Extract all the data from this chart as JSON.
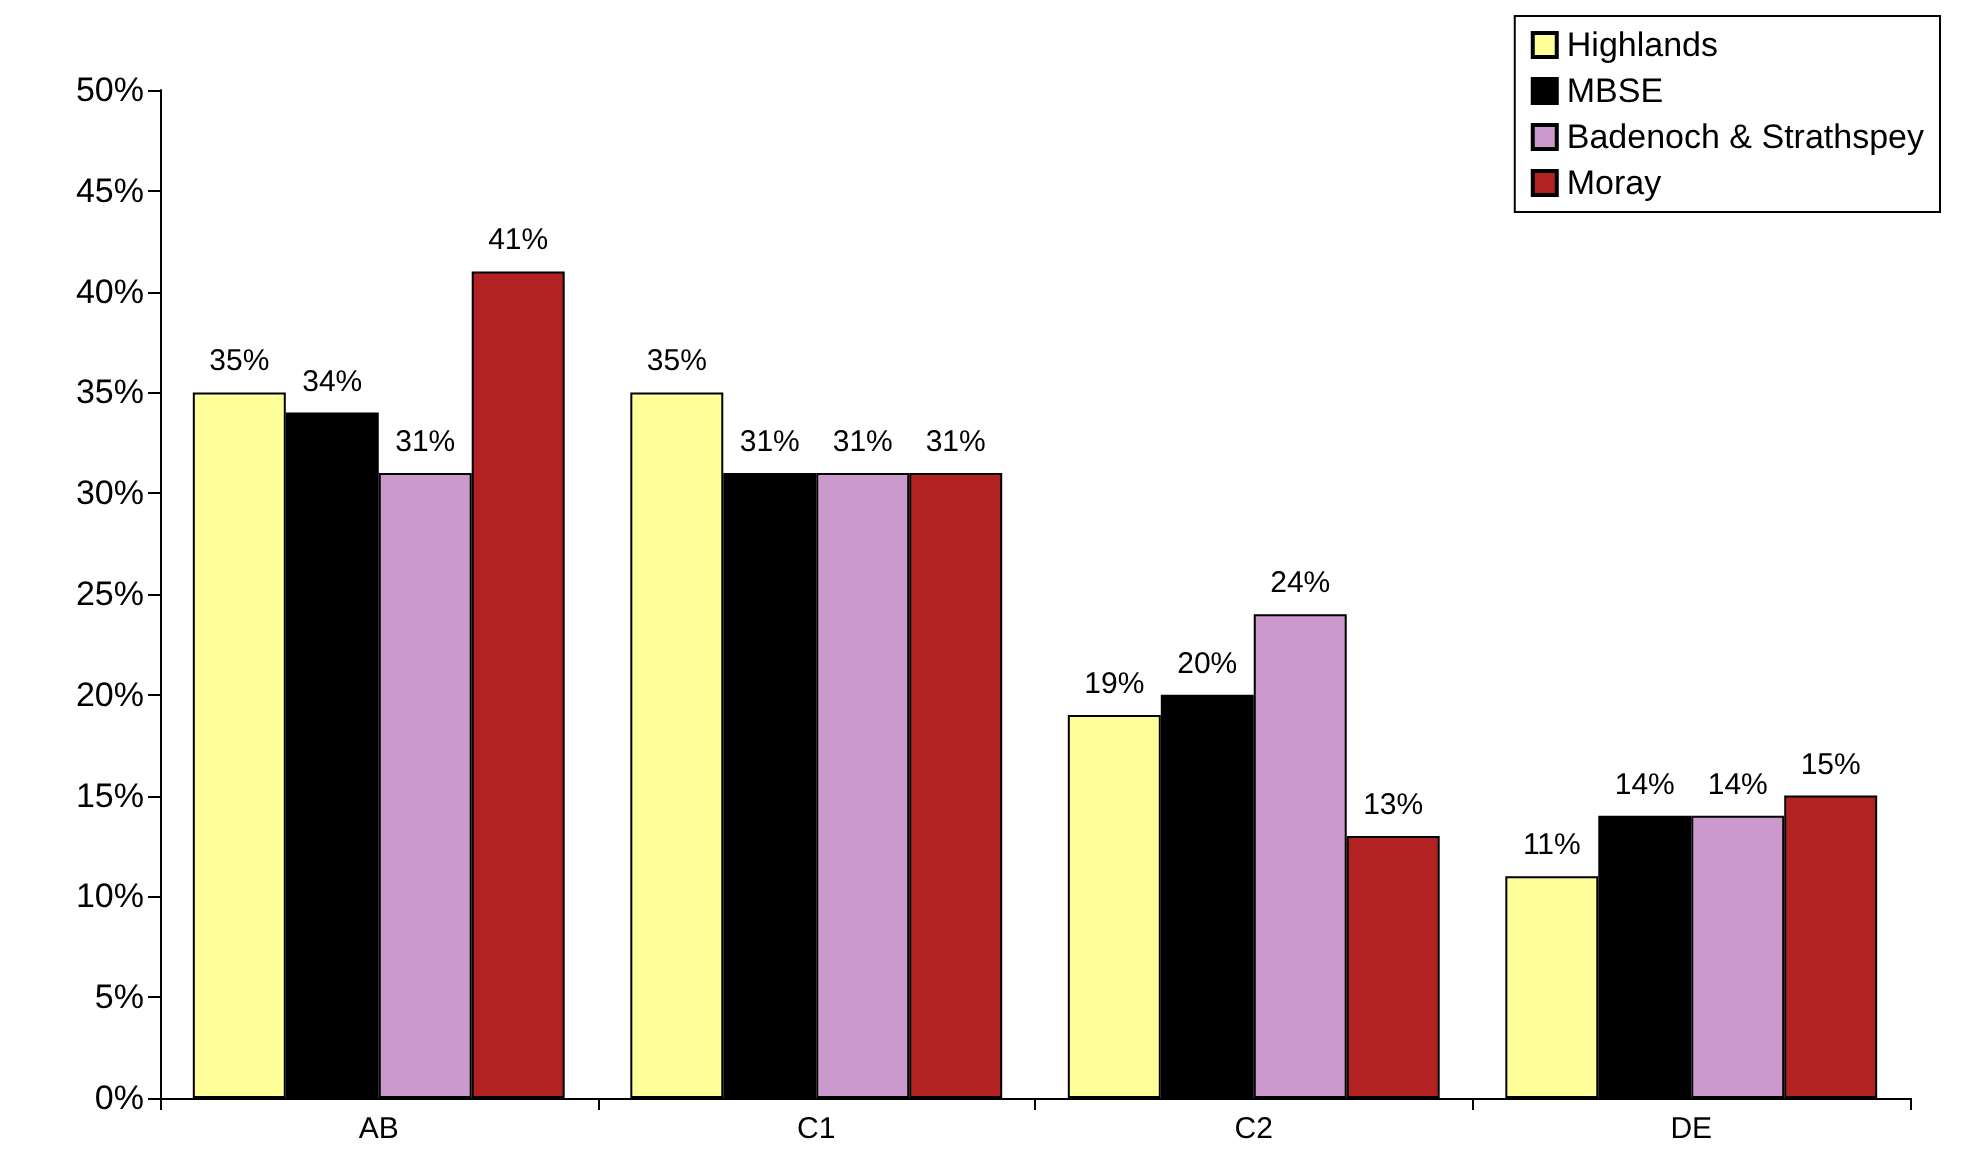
{
  "chart_data": {
    "type": "bar",
    "categories": [
      "AB",
      "C1",
      "C2",
      "DE"
    ],
    "series": [
      {
        "name": "Highlands",
        "color": "#ffff99",
        "values": [
          35,
          35,
          19,
          11
        ],
        "value_labels": [
          "35%",
          "35%",
          "19%",
          "11%"
        ]
      },
      {
        "name": "MBSE",
        "color": "#000000",
        "values": [
          34,
          31,
          20,
          14
        ],
        "value_labels": [
          "34%",
          "31%",
          "20%",
          "14%"
        ]
      },
      {
        "name": "Badenoch & Strathspey",
        "color": "#cc99cc",
        "values": [
          31,
          31,
          24,
          14
        ],
        "value_labels": [
          "31%",
          "31%",
          "24%",
          "14%"
        ]
      },
      {
        "name": "Moray",
        "color": "#b22222",
        "values": [
          41,
          31,
          13,
          15
        ],
        "value_labels": [
          "41%",
          "31%",
          "13%",
          "15%"
        ]
      }
    ],
    "ylim": [
      0,
      50
    ],
    "yticks": [
      {
        "value": 0,
        "label": "0%"
      },
      {
        "value": 5,
        "label": "5%"
      },
      {
        "value": 10,
        "label": "10%"
      },
      {
        "value": 15,
        "label": "15%"
      },
      {
        "value": 20,
        "label": "20%"
      },
      {
        "value": 25,
        "label": "25%"
      },
      {
        "value": 30,
        "label": "30%"
      },
      {
        "value": 35,
        "label": "35%"
      },
      {
        "value": 40,
        "label": "40%"
      },
      {
        "value": 45,
        "label": "45%"
      },
      {
        "value": 50,
        "label": "50%"
      }
    ],
    "grid": false,
    "legend": "top right"
  }
}
